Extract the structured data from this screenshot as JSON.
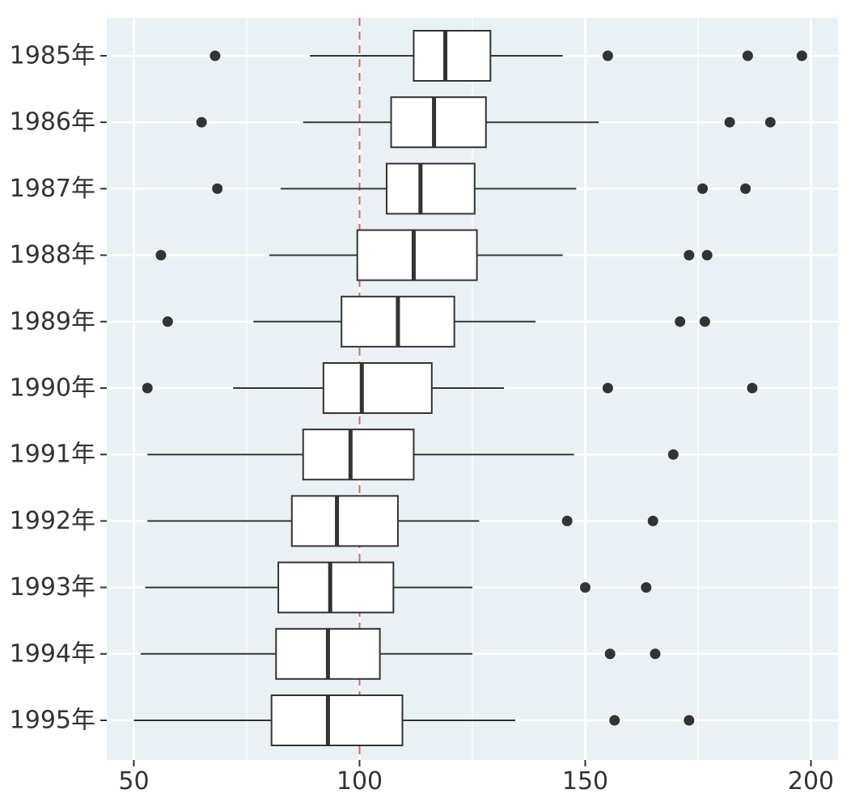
{
  "chart_data": {
    "type": "boxplot",
    "orientation": "horizontal",
    "title": "",
    "xlabel": "",
    "ylabel": "",
    "xlim": [
      44,
      206
    ],
    "x_ticks": [
      50,
      100,
      150,
      200
    ],
    "x_tick_labels": [
      "50",
      "100",
      "150",
      "200"
    ],
    "grid": true,
    "reference_line": {
      "x": 100,
      "style": "dashed",
      "color": "#c0504d"
    },
    "categories": [
      "1985年",
      "1986年",
      "1987年",
      "1988年",
      "1989年",
      "1990年",
      "1991年",
      "1992年",
      "1993年",
      "1994年",
      "1995年"
    ],
    "boxes": [
      {
        "category": "1985年",
        "whisker_low": 89,
        "q1": 112,
        "median": 119,
        "q3": 129,
        "whisker_high": 145,
        "outliers": [
          68,
          155,
          186,
          198
        ]
      },
      {
        "category": "1986年",
        "whisker_low": 87.5,
        "q1": 107,
        "median": 116.5,
        "q3": 128,
        "whisker_high": 153,
        "outliers": [
          65,
          182,
          191
        ]
      },
      {
        "category": "1987年",
        "whisker_low": 82.5,
        "q1": 106,
        "median": 113.5,
        "q3": 125.5,
        "whisker_high": 148,
        "outliers": [
          68.5,
          176,
          185.5
        ]
      },
      {
        "category": "1988年",
        "whisker_low": 80,
        "q1": 99.5,
        "median": 112,
        "q3": 126,
        "whisker_high": 145,
        "outliers": [
          56,
          173,
          177
        ]
      },
      {
        "category": "1989年",
        "whisker_low": 76.5,
        "q1": 96,
        "median": 108.5,
        "q3": 121,
        "whisker_high": 139,
        "outliers": [
          57.5,
          171,
          176.5
        ]
      },
      {
        "category": "1990年",
        "whisker_low": 72,
        "q1": 92,
        "median": 100.5,
        "q3": 116,
        "whisker_high": 132,
        "outliers": [
          53,
          155,
          187
        ]
      },
      {
        "category": "1991年",
        "whisker_low": 53,
        "q1": 87.5,
        "median": 98,
        "q3": 112,
        "whisker_high": 147.5,
        "outliers": [
          169.5
        ]
      },
      {
        "category": "1992年",
        "whisker_low": 53,
        "q1": 85,
        "median": 95,
        "q3": 108.5,
        "whisker_high": 126.5,
        "outliers": [
          146,
          165
        ]
      },
      {
        "category": "1993年",
        "whisker_low": 52.5,
        "q1": 82,
        "median": 93.5,
        "q3": 107.5,
        "whisker_high": 125,
        "outliers": [
          150,
          163.5
        ]
      },
      {
        "category": "1994年",
        "whisker_low": 51.5,
        "q1": 81.5,
        "median": 93,
        "q3": 104.5,
        "whisker_high": 125,
        "outliers": [
          155.5,
          165.5
        ]
      },
      {
        "category": "1995年",
        "whisker_low": 50,
        "q1": 80.5,
        "median": 93,
        "q3": 109.5,
        "whisker_high": 134.5,
        "outliers": [
          156.5,
          173
        ]
      }
    ]
  }
}
